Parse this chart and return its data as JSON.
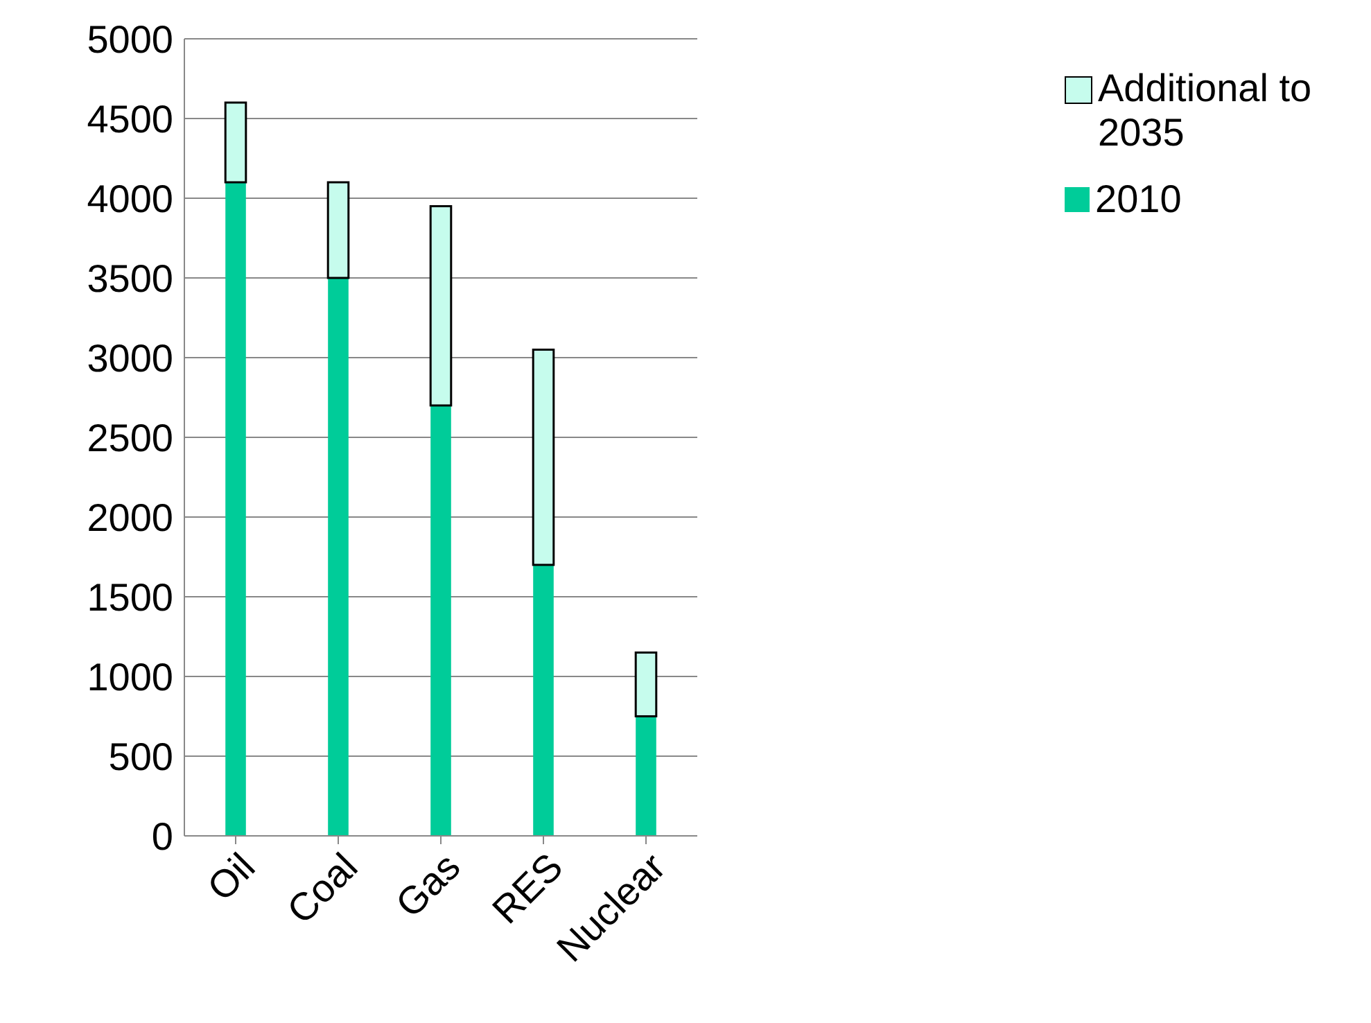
{
  "chart_data": {
    "type": "bar",
    "stacked": true,
    "categories": [
      "Oil",
      "Coal",
      "Gas",
      "RES",
      "Nuclear"
    ],
    "series": [
      {
        "name": "2010",
        "color": "#00cc99",
        "values": [
          4100,
          3500,
          2700,
          1700,
          750
        ]
      },
      {
        "name": "Additional to 2035",
        "color": "#c6fced",
        "values": [
          500,
          600,
          1250,
          1350,
          400
        ]
      }
    ],
    "ylim": [
      0,
      5000
    ],
    "yticks": [
      0,
      500,
      1000,
      1500,
      2000,
      2500,
      3000,
      3500,
      4000,
      4500,
      5000
    ],
    "grid": "y",
    "legend": "top right"
  }
}
